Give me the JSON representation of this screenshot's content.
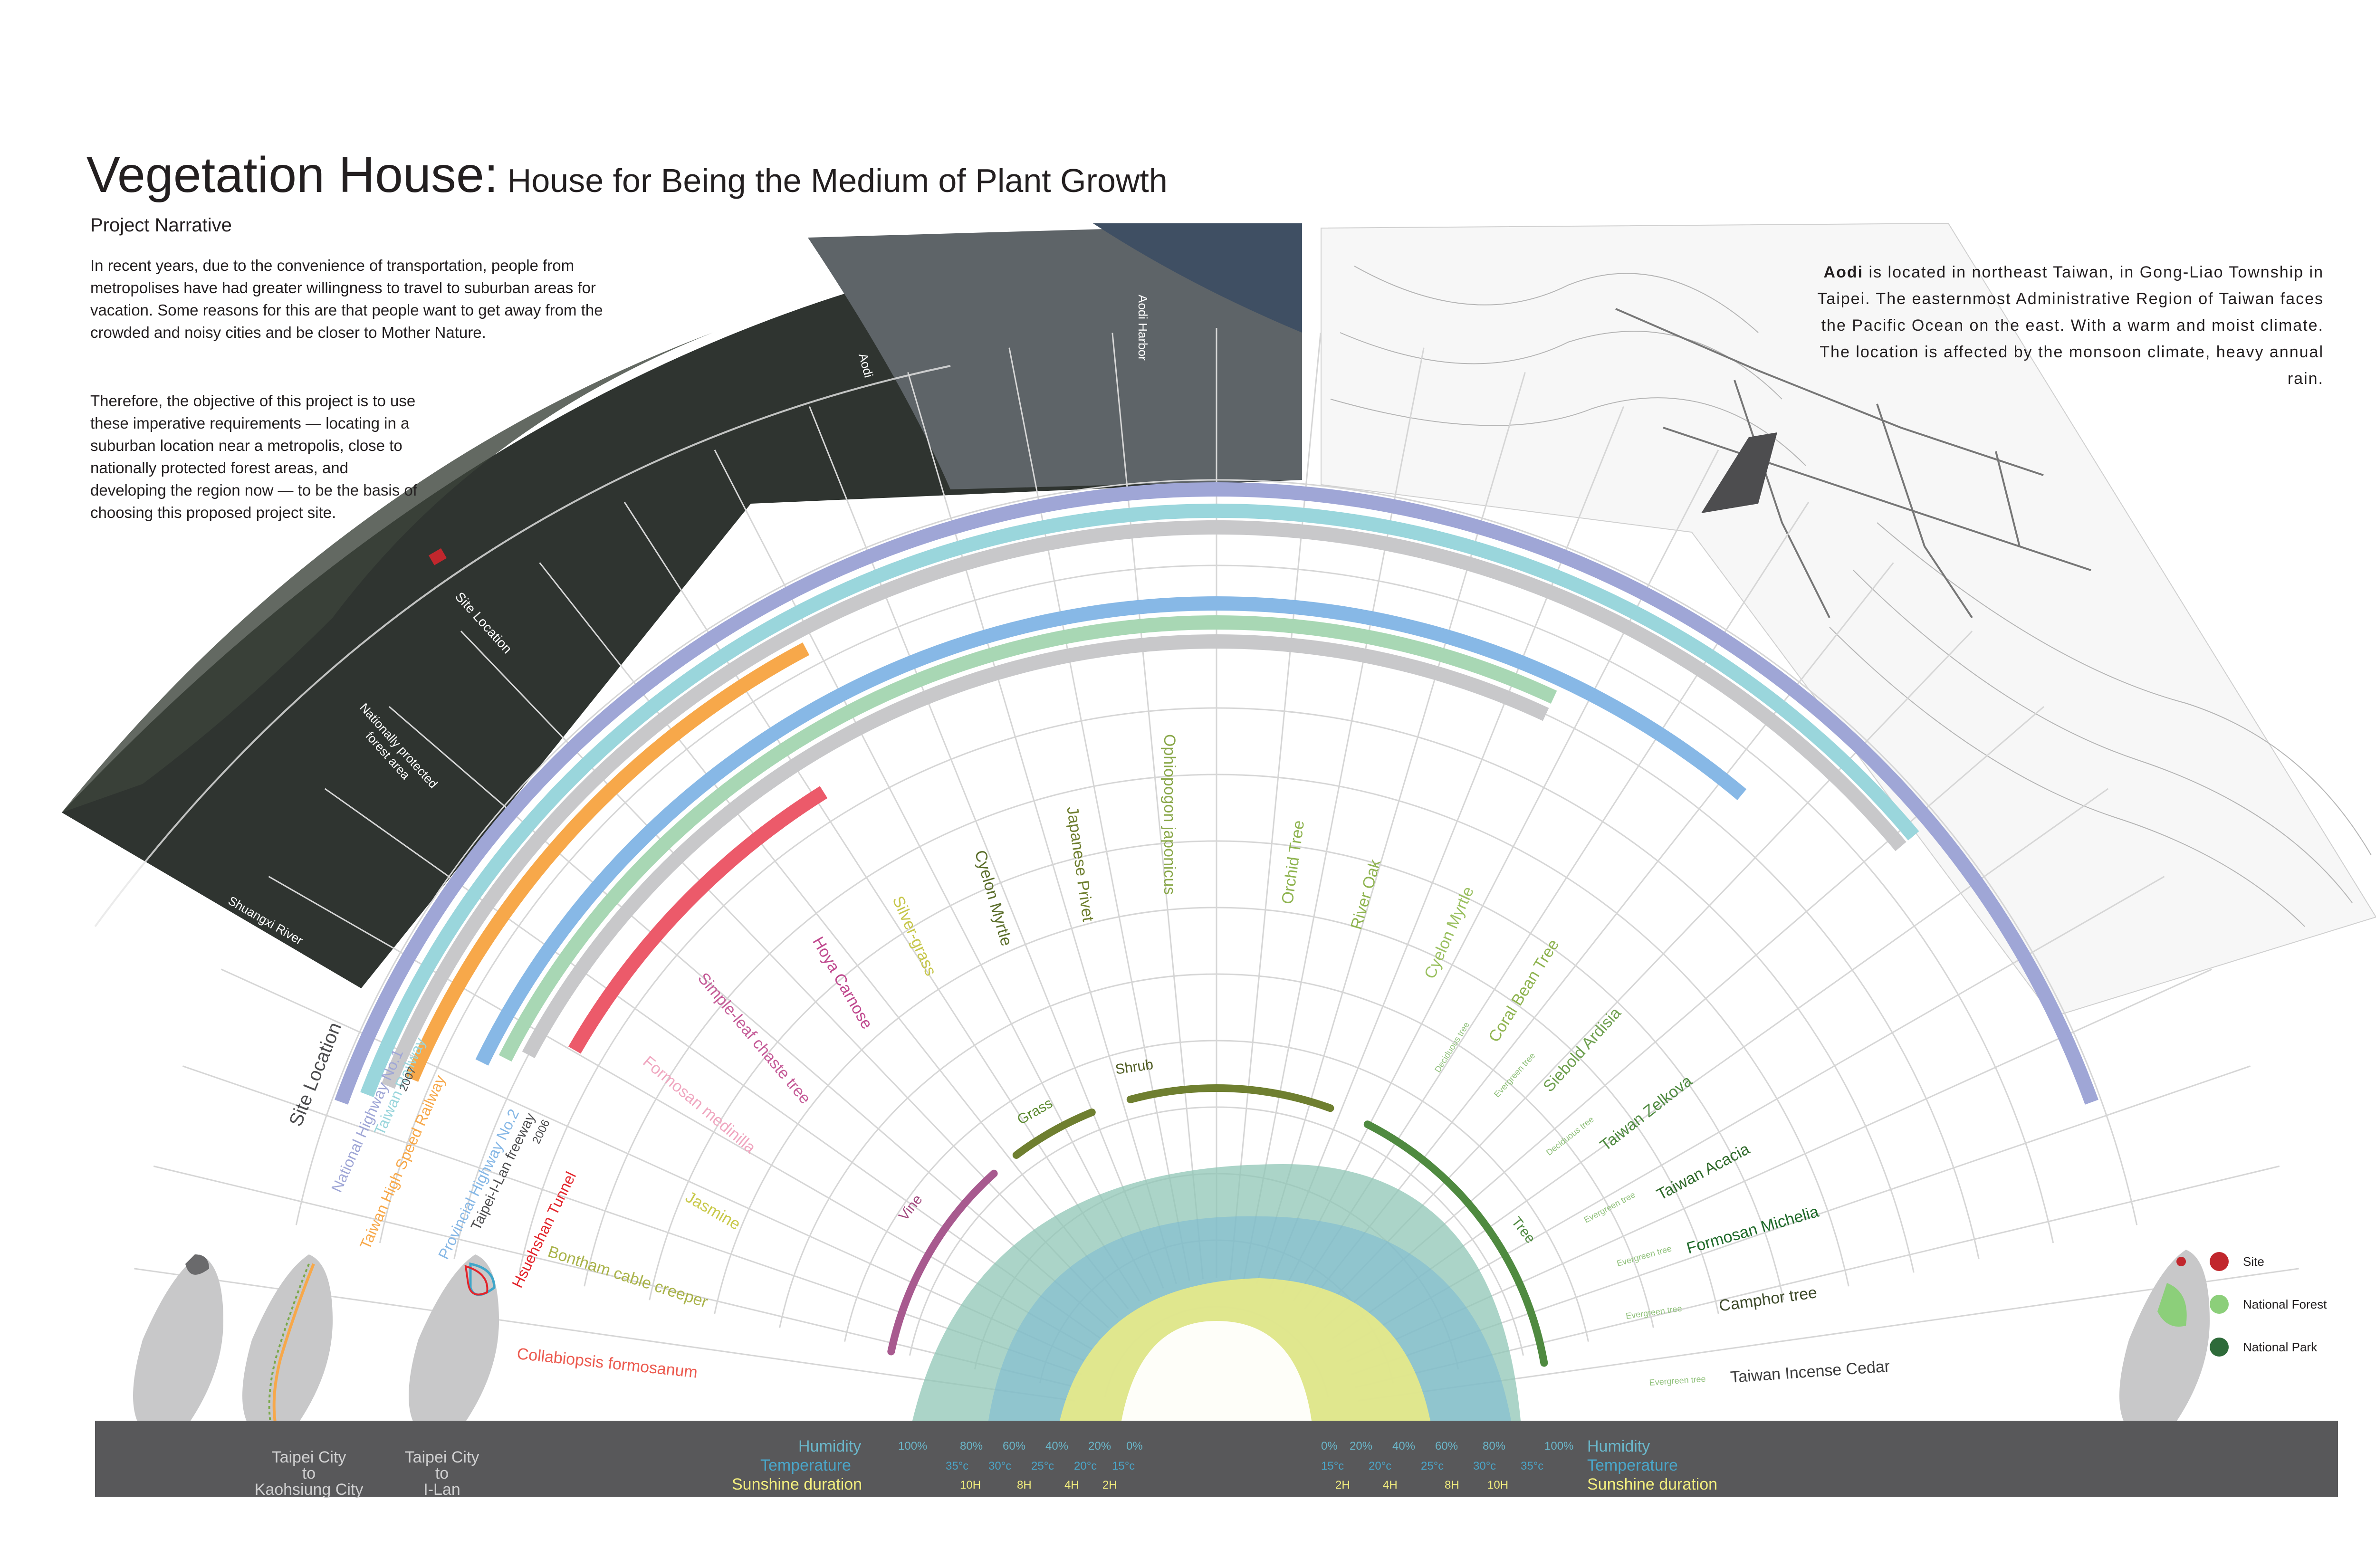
{
  "title": {
    "main": "Vegetation House:",
    "sub": " House for Being the Medium of Plant Growth"
  },
  "narrative": {
    "heading": "Project Narrative",
    "para1": "In recent years, due to the convenience of transportation, people from metropolises have had greater willingness to travel to suburban areas for vacation.  Some reasons for this are that people want to get away from the crowded and noisy cities and be closer to Mother Nature.",
    "para2": "Therefore,  the objective of this project is to use these imperative requirements — locating in a suburban location near a metropolis, close to nationally protected forest areas, and developing the region now — to be the basis of choosing this proposed project site."
  },
  "aodi": {
    "bold": "Aodi",
    "text": " is located in northeast Taiwan, in Gong-Liao Township in Taipei.  The easternmost Administrative Region of Taiwan faces the Pacific Ocean on the east.  With a warm and moist climate.  The location is affected by the monsoon climate, heavy annual rain."
  },
  "map_labels": {
    "aodi": "Aodi",
    "harbor": "Aodi Harbor",
    "site_location": "Site Location",
    "forest": "Nationally protected forest area",
    "river": "Shuangxi River"
  },
  "arcs": [
    {
      "label": "Site Location",
      "color": "#4d4d4f"
    },
    {
      "label": "National Highway No.1",
      "color": "#9fa6d6"
    },
    {
      "label": "Taiwan Railway",
      "color": "#9ad6dc"
    },
    {
      "label": "2007",
      "color": "#4d4d4f"
    },
    {
      "label": "Taiwan High Speed Railway",
      "color": "#f7a84a"
    },
    {
      "label": "Provincial Highway No.2",
      "color": "#87b8e6"
    },
    {
      "label": "Taipei-I-Lan freeway",
      "color": "#4d4d4f"
    },
    {
      "label": "2006",
      "color": "#4d4d4f"
    },
    {
      "label": "Hsuehshan Tunnel",
      "color": "#e3242b"
    }
  ],
  "plants_left": [
    {
      "name": "Collabiopsis formosanum",
      "color": "#ec5a4f"
    },
    {
      "name": "Bontham cable creeper",
      "color": "#a9b34a"
    },
    {
      "name": "Jasmine",
      "color": "#c9c94a"
    },
    {
      "name": "Formosan medinilla",
      "color": "#f0a7c0"
    },
    {
      "name": "Simple-leaf chaste tree",
      "color": "#c55c98"
    },
    {
      "name": "Hoya Carnose",
      "color": "#c04a8f"
    },
    {
      "name": "Silver-grass",
      "color": "#c6c64a"
    },
    {
      "name": "Cyelon Myrtle",
      "color": "#5c6f2c"
    },
    {
      "name": "Japanese Privet",
      "color": "#6f7f30"
    },
    {
      "name": "Ophiopogon japonicus",
      "color": "#8aa84a"
    },
    {
      "name": "Orchid Tree",
      "color": "#8fb450"
    },
    {
      "name": "River Oak",
      "color": "#8fb450"
    },
    {
      "name": "Cyelon Myrtle",
      "color": "#9ac060"
    },
    {
      "name": "Coral Bean Tree",
      "color": "#8fb450"
    },
    {
      "name": "Siebold Ardisia",
      "color": "#6fa050"
    },
    {
      "name": "Taiwan Zelkova",
      "color": "#4f8a40"
    },
    {
      "name": "Taiwan  Acacia",
      "color": "#2f6a2a"
    },
    {
      "name": "Formosan Michelia",
      "color": "#1f6a2a"
    },
    {
      "name": "Camphor tree",
      "color": "#3d4a2a"
    },
    {
      "name": "Taiwan Incense Cedar",
      "color": "#3d3d3d"
    }
  ],
  "plant_tags": {
    "deciduous": "Deciduous tree",
    "evergreen": "Evergreen tree"
  },
  "categories": {
    "vine": "Vine",
    "grass": "Grass",
    "shrub": "Shrub",
    "tree": "Tree"
  },
  "footer": {
    "humidity": "Humidity",
    "temperature": "Temperature",
    "sunshine": "Sunshine duration",
    "humidity_left": [
      "100%",
      "80%",
      "60%",
      "40%",
      "20%",
      "0%"
    ],
    "temp_left": [
      "35°c",
      "30°c",
      "25°c",
      "20°c",
      "15°c"
    ],
    "sun_left": [
      "10H",
      "8H",
      "4H",
      "2H"
    ],
    "humidity_right": [
      "0%",
      "20%",
      "40%",
      "60%",
      "80%",
      "100%"
    ],
    "temp_right": [
      "15°c",
      "20°c",
      "25°c",
      "30°c",
      "35°c"
    ],
    "sun_right": [
      "2H",
      "4H",
      "8H",
      "10H"
    ],
    "city1": "Taipei City\nto\nKaohsiung City",
    "city2": "Taipei City\nto\nI-Lan"
  },
  "legend": {
    "site": "Site",
    "forest": "National Forest",
    "park": "National Park",
    "site_color": "#c1272d",
    "forest_color": "#8ccf7a",
    "park_color": "#2e6b3a"
  }
}
